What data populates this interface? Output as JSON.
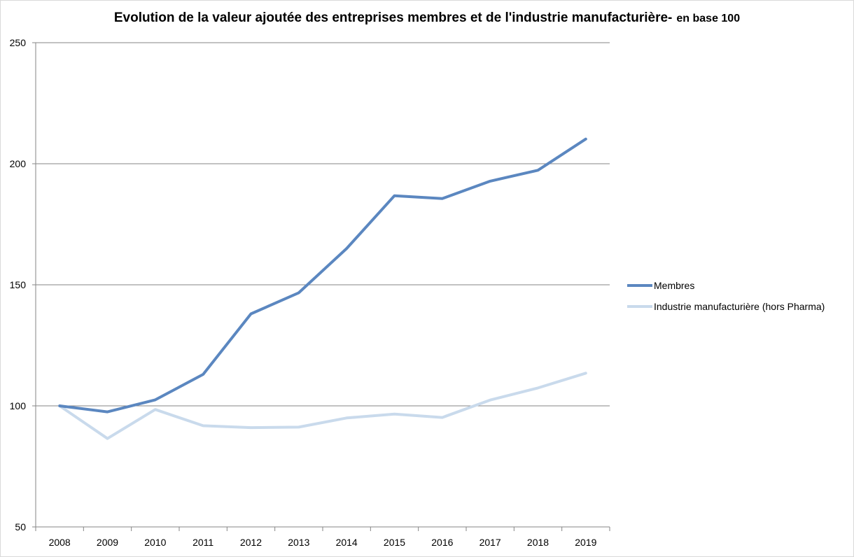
{
  "title": "Evolution de la valeur ajoutée des entreprises membres et de l'industrie manufacturière-",
  "subtitle": "en base 100",
  "chart_data": {
    "type": "line",
    "title": "Evolution de la valeur ajoutée des entreprises membres et de l'industrie manufacturière- en base 100",
    "xlabel": "",
    "ylabel": "",
    "categories": [
      "2008",
      "2009",
      "2010",
      "2011",
      "2012",
      "2013",
      "2014",
      "2015",
      "2016",
      "2017",
      "2018",
      "2019"
    ],
    "ylim": [
      50,
      250
    ],
    "yticks": [
      50,
      100,
      150,
      200,
      250
    ],
    "grid": true,
    "legend_position": "right",
    "series": [
      {
        "name": "Membres",
        "color": "#5b87c0",
        "values": [
          100,
          97.5,
          102.5,
          113,
          138,
          146.7,
          165,
          186.8,
          185.6,
          192.8,
          197.3,
          210.2
        ]
      },
      {
        "name": "Industrie manufacturière (hors Pharma)",
        "color": "#c9daec",
        "values": [
          100,
          86.5,
          98.5,
          91.8,
          91,
          91.2,
          95,
          96.6,
          95.2,
          102.4,
          107.4,
          113.5
        ]
      }
    ]
  }
}
